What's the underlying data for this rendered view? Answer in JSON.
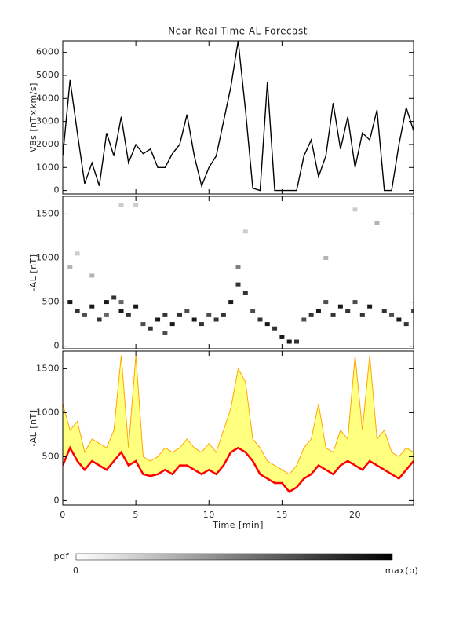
{
  "chart_data": [
    {
      "type": "line",
      "title": "Near Real Time AL Forecast",
      "ylabel": "VBs [nT×km/s]",
      "color": "#000000",
      "xlim": [
        0,
        24
      ],
      "xticks": [
        0,
        5,
        10,
        15,
        20
      ],
      "ylim": [
        -150,
        6500
      ],
      "yticks": [
        0,
        1000,
        2000,
        3000,
        4000,
        5000,
        6000
      ],
      "x": [
        0,
        0.5,
        1,
        1.5,
        2,
        2.5,
        3,
        3.5,
        4,
        4.5,
        5,
        5.5,
        6,
        6.5,
        7,
        7.5,
        8,
        8.5,
        9,
        9.5,
        10,
        10.5,
        11,
        11.5,
        12,
        12.5,
        13,
        13.5,
        14,
        14.5,
        15,
        15.5,
        16,
        16.5,
        17,
        17.5,
        18,
        18.5,
        19,
        19.5,
        20,
        20.5,
        21,
        21.5,
        22,
        22.5,
        23,
        23.5,
        24
      ],
      "values": [
        1500,
        4800,
        2500,
        300,
        1200,
        200,
        2500,
        1500,
        3200,
        1200,
        2000,
        1600,
        1800,
        1000,
        1000,
        1600,
        2000,
        3300,
        1500,
        200,
        1000,
        1500,
        3000,
        4500,
        6500,
        3500,
        100,
        0,
        4700,
        0,
        0,
        0,
        0,
        1500,
        2200,
        600,
        1500,
        3800,
        1800,
        3200,
        1000,
        2500,
        2200,
        3500,
        0,
        0,
        2000,
        3600,
        2600
      ]
    },
    {
      "type": "scatter",
      "ylabel": "-AL [nT]",
      "xlim": [
        0,
        24
      ],
      "xticks": [
        0,
        5,
        10,
        15,
        20
      ],
      "ylim": [
        -30,
        1700
      ],
      "yticks": [
        0,
        500,
        1000,
        1500
      ],
      "x": [
        0.5,
        0.5,
        1,
        1,
        1.5,
        2,
        2,
        2.5,
        3,
        3,
        3.5,
        4,
        4,
        4,
        4.5,
        5,
        5,
        5.5,
        6,
        6.5,
        7,
        7,
        7.5,
        8,
        8.5,
        9,
        9.5,
        10,
        10.5,
        11,
        11.5,
        12,
        12,
        12.5,
        12.5,
        13,
        13.5,
        14,
        14.5,
        15,
        15.5,
        16,
        16.5,
        17,
        17.5,
        18,
        18,
        18.5,
        19,
        19.5,
        20,
        20,
        20.5,
        21,
        21.5,
        22,
        22.5,
        23,
        23.5,
        24
      ],
      "values": [
        500,
        900,
        400,
        1050,
        350,
        450,
        800,
        300,
        500,
        350,
        550,
        400,
        1600,
        500,
        350,
        450,
        1600,
        250,
        200,
        300,
        350,
        150,
        250,
        350,
        400,
        300,
        250,
        350,
        300,
        350,
        500,
        700,
        900,
        600,
        1300,
        400,
        300,
        250,
        200,
        100,
        50,
        50,
        300,
        350,
        400,
        500,
        1000,
        350,
        450,
        400,
        500,
        1550,
        350,
        450,
        1400,
        400,
        350,
        300,
        250,
        400
      ],
      "p": [
        0.9,
        0.3,
        0.8,
        0.2,
        0.7,
        0.9,
        0.3,
        0.8,
        0.9,
        0.6,
        0.8,
        0.9,
        0.2,
        0.6,
        0.8,
        0.9,
        0.2,
        0.7,
        0.8,
        0.9,
        0.8,
        0.7,
        0.9,
        0.8,
        0.7,
        0.9,
        0.8,
        0.7,
        0.8,
        0.8,
        0.9,
        0.8,
        0.5,
        0.8,
        0.2,
        0.7,
        0.8,
        0.9,
        0.8,
        0.9,
        0.9,
        0.8,
        0.7,
        0.8,
        0.9,
        0.7,
        0.3,
        0.8,
        0.9,
        0.8,
        0.7,
        0.2,
        0.8,
        0.9,
        0.3,
        0.8,
        0.7,
        0.9,
        0.8,
        0.7
      ]
    },
    {
      "type": "area",
      "ylabel": "-AL [nT]",
      "xlabel": "Time [min]",
      "fill": "#ffff80",
      "xlim": [
        0,
        24
      ],
      "xticks": [
        0,
        5,
        10,
        15,
        20
      ],
      "ylim": [
        -50,
        1700
      ],
      "yticks": [
        0,
        500,
        1000,
        1500
      ],
      "x": [
        0,
        0.5,
        1,
        1.5,
        2,
        2.5,
        3,
        3.5,
        4,
        4.5,
        5,
        5.5,
        6,
        6.5,
        7,
        7.5,
        8,
        8.5,
        9,
        9.5,
        10,
        10.5,
        11,
        11.5,
        12,
        12.5,
        13,
        13.5,
        14,
        14.5,
        15,
        15.5,
        16,
        16.5,
        17,
        17.5,
        18,
        18.5,
        19,
        19.5,
        20,
        20.5,
        21,
        21.5,
        22,
        22.5,
        23,
        23.5,
        24
      ],
      "series": [
        {
          "color": "#ff0000",
          "values": [
            400,
            600,
            450,
            350,
            450,
            400,
            350,
            450,
            550,
            400,
            450,
            300,
            280,
            300,
            350,
            300,
            400,
            400,
            350,
            300,
            350,
            300,
            400,
            550,
            600,
            550,
            450,
            300,
            250,
            200,
            200,
            100,
            150,
            250,
            300,
            400,
            350,
            300,
            400,
            450,
            400,
            350,
            450,
            400,
            350,
            300,
            250,
            350,
            450
          ]
        },
        {
          "color": "#ffa500",
          "values": [
            1100,
            800,
            900,
            550,
            700,
            650,
            600,
            800,
            1650,
            600,
            1650,
            500,
            450,
            500,
            600,
            550,
            600,
            700,
            600,
            550,
            650,
            550,
            800,
            1050,
            1500,
            1350,
            700,
            600,
            450,
            400,
            350,
            300,
            400,
            600,
            700,
            1100,
            600,
            550,
            800,
            700,
            1650,
            800,
            1650,
            700,
            800,
            550,
            500,
            600,
            550
          ]
        }
      ]
    }
  ],
  "colorbar": {
    "label": "pdf",
    "min_label": "0",
    "max_label": "max(p)"
  }
}
